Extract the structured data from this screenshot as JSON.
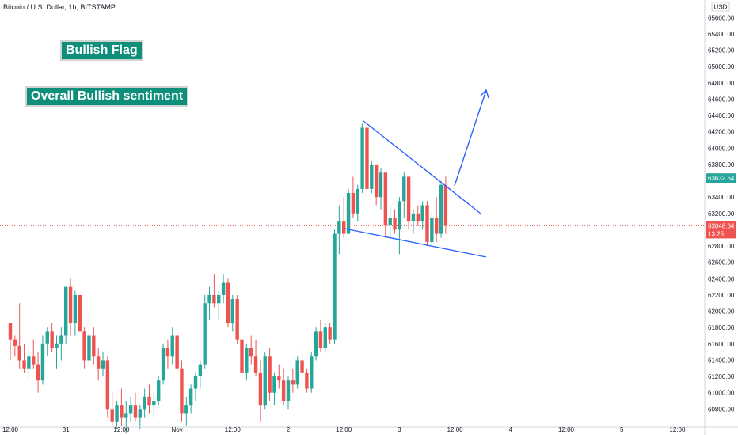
{
  "header": {
    "symbol_line": "Bitcoin / U.S. Dollar, 1h, BITSTAMP"
  },
  "annotations": {
    "flag_label": "Bullish Flag",
    "sentiment_label": "Overall Bullish sentiment"
  },
  "colors": {
    "up": "#26a69a",
    "down": "#ef5350",
    "annotation": "#2962ff",
    "current_price_bg": "#ef5350",
    "high_price_bg": "#26a69a",
    "label_bg": "#0e8f7b"
  },
  "chart_data": {
    "type": "candlestick",
    "title": "Bitcoin / U.S. Dollar, 1h, BITSTAMP",
    "currency": "USD",
    "y_ticks": [
      "65600.00",
      "65400.00",
      "65200.00",
      "65000.00",
      "64800.00",
      "64600.00",
      "64400.00",
      "64200.00",
      "64000.00",
      "63800.00",
      "63600.00",
      "63400.00",
      "63200.00",
      "63000.00",
      "62800.00",
      "62600.00",
      "62400.00",
      "62200.00",
      "62000.00",
      "61800.00",
      "61600.00",
      "61400.00",
      "61200.00",
      "61000.00",
      "60800.00"
    ],
    "y_tick_values": [
      65600,
      65400,
      65200,
      65000,
      64800,
      64600,
      64400,
      64200,
      64000,
      63800,
      63600,
      63400,
      63200,
      63000,
      62800,
      62600,
      62400,
      62200,
      62000,
      61800,
      61600,
      61400,
      61200,
      61000,
      60800
    ],
    "x_ticks": [
      "12:00",
      "31",
      "12:00",
      "Nov",
      "12:00",
      "2",
      "12:00",
      "3",
      "12:00",
      "4",
      "12:00",
      "5",
      "12:00"
    ],
    "x_tick_index": [
      0,
      12,
      24,
      36,
      48,
      60,
      72,
      84,
      96,
      108,
      120,
      132,
      144
    ],
    "ylim": [
      60580,
      65700
    ],
    "price_labels": {
      "high": "63632.64",
      "current": "63048.64",
      "countdown": "13:25"
    },
    "current_price": 63048.64,
    "high_price": 63632.64,
    "candles": [
      [
        61850,
        61850,
        61400,
        61650
      ],
      [
        61650,
        61700,
        61450,
        61580
      ],
      [
        61580,
        62100,
        61300,
        61400
      ],
      [
        61400,
        61600,
        61250,
        61300
      ],
      [
        61300,
        61550,
        61150,
        61450
      ],
      [
        61450,
        61650,
        61300,
        61350
      ],
      [
        61350,
        61500,
        61000,
        61150
      ],
      [
        61150,
        61700,
        61100,
        61600
      ],
      [
        61600,
        61800,
        61450,
        61750
      ],
      [
        61750,
        61850,
        61500,
        61550
      ],
      [
        61550,
        61700,
        61300,
        61600
      ],
      [
        61600,
        61800,
        61400,
        61700
      ],
      [
        61700,
        62300,
        61600,
        62300
      ],
      [
        62300,
        62400,
        61700,
        61850
      ],
      [
        61850,
        62250,
        61700,
        62200
      ],
      [
        62200,
        62200,
        61750,
        61750
      ],
      [
        61750,
        61800,
        61300,
        61400
      ],
      [
        61400,
        62000,
        61350,
        61700
      ],
      [
        61700,
        61800,
        61350,
        61450
      ],
      [
        61450,
        61550,
        61150,
        61300
      ],
      [
        61300,
        61500,
        61200,
        61400
      ],
      [
        61400,
        61450,
        60700,
        60800
      ],
      [
        60800,
        61000,
        60550,
        60650
      ],
      [
        60650,
        60900,
        60550,
        60850
      ],
      [
        60850,
        61050,
        60600,
        60700
      ],
      [
        60700,
        60900,
        60500,
        60750
      ],
      [
        60750,
        60950,
        60650,
        60850
      ],
      [
        60850,
        61000,
        60650,
        60700
      ],
      [
        60700,
        60850,
        60550,
        60800
      ],
      [
        60800,
        61050,
        60700,
        60950
      ],
      [
        60950,
        61100,
        60750,
        60850
      ],
      [
        60850,
        61000,
        60700,
        60900
      ],
      [
        60900,
        61200,
        60850,
        61150
      ],
      [
        61150,
        61600,
        61100,
        61550
      ],
      [
        61550,
        61650,
        61300,
        61450
      ],
      [
        61450,
        61800,
        61350,
        61700
      ],
      [
        61700,
        61750,
        61250,
        61300
      ],
      [
        61300,
        61400,
        60650,
        60750
      ],
      [
        60750,
        60950,
        60600,
        60850
      ],
      [
        60850,
        61100,
        60750,
        61050
      ],
      [
        61050,
        61250,
        60900,
        61200
      ],
      [
        61200,
        61400,
        61050,
        61350
      ],
      [
        61350,
        62200,
        61300,
        62100
      ],
      [
        62100,
        62300,
        61900,
        62200
      ],
      [
        62200,
        62450,
        62050,
        62100
      ],
      [
        62100,
        62250,
        61900,
        62200
      ],
      [
        62200,
        62450,
        62100,
        62350
      ],
      [
        62350,
        62400,
        61800,
        61850
      ],
      [
        61850,
        62200,
        61750,
        62150
      ],
      [
        62150,
        62200,
        61600,
        61650
      ],
      [
        61650,
        61700,
        61200,
        61250
      ],
      [
        61250,
        61600,
        61150,
        61550
      ],
      [
        61550,
        61700,
        61350,
        61450
      ],
      [
        61450,
        61650,
        61200,
        61250
      ],
      [
        61250,
        61400,
        60650,
        60850
      ],
      [
        60850,
        61500,
        60800,
        61450
      ],
      [
        61450,
        61550,
        60900,
        61000
      ],
      [
        61000,
        61250,
        60850,
        61200
      ],
      [
        61200,
        61350,
        61050,
        61150
      ],
      [
        61150,
        61300,
        60850,
        60900
      ],
      [
        60900,
        61200,
        60800,
        61150
      ],
      [
        61150,
        61300,
        61000,
        61100
      ],
      [
        61100,
        61450,
        61050,
        61400
      ],
      [
        61400,
        61550,
        61150,
        61250
      ],
      [
        61250,
        61300,
        61000,
        61050
      ],
      [
        61050,
        61500,
        61000,
        61450
      ],
      [
        61450,
        61800,
        61400,
        61750
      ],
      [
        61750,
        61900,
        61500,
        61550
      ],
      [
        61550,
        61850,
        61500,
        61800
      ],
      [
        61800,
        61850,
        61600,
        61650
      ],
      [
        61650,
        63000,
        61600,
        62950
      ],
      [
        62950,
        63300,
        62700,
        63100
      ],
      [
        63100,
        63400,
        62900,
        62950
      ],
      [
        62950,
        63500,
        63000,
        63450
      ],
      [
        63450,
        63650,
        63150,
        63200
      ],
      [
        63200,
        63550,
        63100,
        63500
      ],
      [
        63500,
        64300,
        63450,
        64250
      ],
      [
        64250,
        64300,
        63400,
        63500
      ],
      [
        63500,
        63850,
        63450,
        63800
      ],
      [
        63800,
        63800,
        63300,
        63400
      ],
      [
        63400,
        63750,
        63250,
        63700
      ],
      [
        63700,
        63700,
        62900,
        63050
      ],
      [
        63050,
        63300,
        62900,
        63150
      ],
      [
        63150,
        63250,
        62950,
        63000
      ],
      [
        63000,
        63400,
        62700,
        63350
      ],
      [
        63350,
        63700,
        63150,
        63650
      ],
      [
        63650,
        63650,
        63000,
        63100
      ],
      [
        63100,
        63250,
        62950,
        63200
      ],
      [
        63200,
        63300,
        63050,
        63100
      ],
      [
        63100,
        63350,
        63000,
        63300
      ],
      [
        63300,
        63350,
        62800,
        62850
      ],
      [
        62850,
        63200,
        62800,
        63150
      ],
      [
        63150,
        63400,
        62850,
        62950
      ],
      [
        62950,
        63600,
        62900,
        63550
      ],
      [
        63550,
        63650,
        62950,
        63048.64
      ]
    ]
  }
}
